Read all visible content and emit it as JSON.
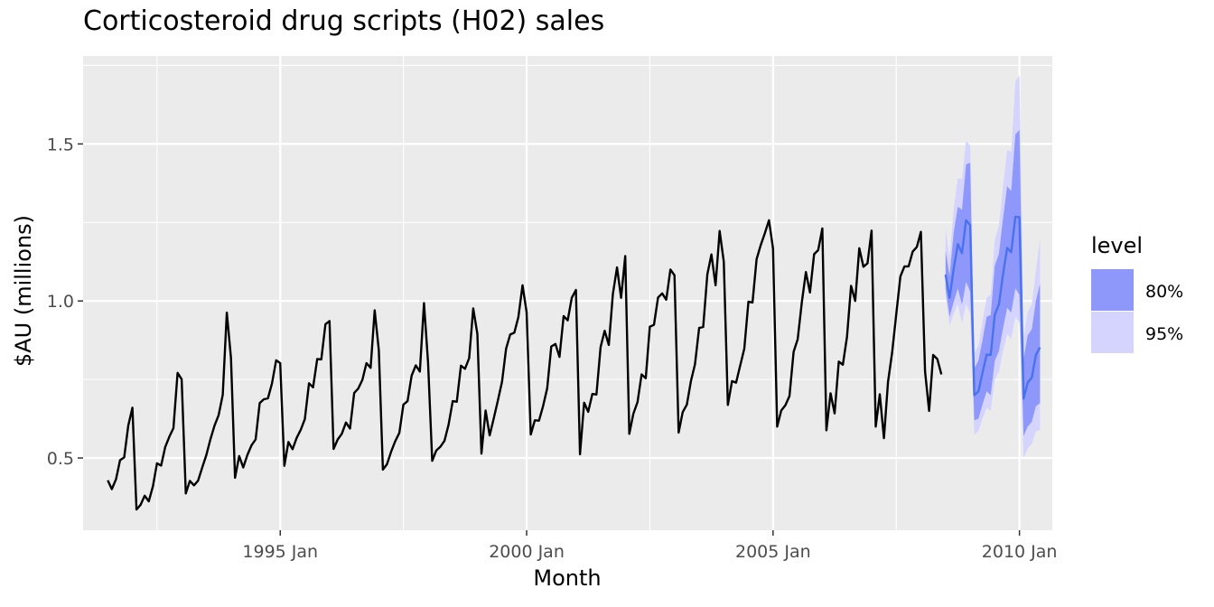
{
  "chart_data": {
    "type": "line",
    "title": "Corticosteroid drug scripts (H02) sales",
    "xlabel": "Month",
    "ylabel": "$AU (millions)",
    "xlim": [
      "1991 Jan",
      "2010 Sep"
    ],
    "ylim": [
      0.27,
      1.78
    ],
    "grid": true,
    "x_ticks": [
      {
        "value": "1995 Jan",
        "label": "1995 Jan"
      },
      {
        "value": "2000 Jan",
        "label": "2000 Jan"
      },
      {
        "value": "2005 Jan",
        "label": "2005 Jan"
      },
      {
        "value": "2010 Jan",
        "label": "2010 Jan"
      }
    ],
    "y_ticks": [
      {
        "value": 0.5,
        "label": "0.5"
      },
      {
        "value": 1.0,
        "label": "1.0"
      },
      {
        "value": 1.5,
        "label": "1.5"
      }
    ],
    "legend": {
      "title": "level",
      "position": "right",
      "entries": [
        {
          "label": "80%",
          "color": "#8e98fb"
        },
        {
          "label": "95%",
          "color": "#d4d4fe"
        }
      ]
    },
    "colors": {
      "history": "#000000",
      "forecast": "#4a72ee",
      "band80": "#8e98fb",
      "band95": "#d4d4fe",
      "panel": "#ebebeb",
      "grid": "#ffffff"
    },
    "series": [
      {
        "role": "history",
        "start": "1991 Jul",
        "values": [
          0.429,
          0.401,
          0.432,
          0.493,
          0.502,
          0.603,
          0.66,
          0.336,
          0.351,
          0.38,
          0.362,
          0.41,
          0.483,
          0.476,
          0.535,
          0.568,
          0.595,
          0.771,
          0.751,
          0.387,
          0.427,
          0.413,
          0.428,
          0.47,
          0.509,
          0.559,
          0.603,
          0.636,
          0.701,
          0.963,
          0.819,
          0.437,
          0.506,
          0.47,
          0.51,
          0.54,
          0.559,
          0.675,
          0.687,
          0.69,
          0.737,
          0.811,
          0.802,
          0.475,
          0.551,
          0.528,
          0.564,
          0.59,
          0.624,
          0.738,
          0.725,
          0.815,
          0.814,
          0.926,
          0.936,
          0.529,
          0.559,
          0.577,
          0.613,
          0.594,
          0.707,
          0.721,
          0.749,
          0.802,
          0.787,
          0.97,
          0.843,
          0.463,
          0.48,
          0.52,
          0.553,
          0.58,
          0.67,
          0.681,
          0.762,
          0.795,
          0.775,
          0.993,
          0.804,
          0.491,
          0.524,
          0.536,
          0.555,
          0.606,
          0.681,
          0.679,
          0.794,
          0.784,
          0.818,
          0.976,
          0.895,
          0.514,
          0.651,
          0.572,
          0.627,
          0.683,
          0.743,
          0.848,
          0.893,
          0.899,
          0.949,
          1.05,
          0.964,
          0.575,
          0.62,
          0.619,
          0.665,
          0.722,
          0.855,
          0.863,
          0.822,
          0.952,
          0.938,
          1.01,
          1.035,
          0.512,
          0.676,
          0.647,
          0.704,
          0.702,
          0.853,
          0.905,
          0.86,
          1.022,
          1.107,
          1.01,
          1.143,
          0.577,
          0.641,
          0.678,
          0.766,
          0.754,
          0.918,
          0.924,
          1.011,
          1.024,
          1.004,
          1.1,
          1.082,
          0.581,
          0.646,
          0.67,
          0.745,
          0.798,
          0.914,
          0.917,
          1.085,
          1.148,
          1.05,
          1.223,
          1.125,
          0.669,
          0.745,
          0.74,
          0.795,
          0.848,
          0.998,
          0.995,
          1.133,
          1.178,
          1.215,
          1.257,
          1.167,
          0.6,
          0.651,
          0.668,
          0.697,
          0.838,
          0.878,
          0.996,
          1.092,
          1.027,
          1.149,
          1.162,
          1.231,
          0.588,
          0.706,
          0.642,
          0.807,
          0.797,
          0.886,
          1.048,
          1.0,
          1.168,
          1.109,
          1.12,
          1.224,
          0.6,
          0.703,
          0.563,
          0.742,
          0.837,
          0.957,
          1.078,
          1.11,
          1.11,
          1.157,
          1.172,
          1.22,
          0.776,
          0.65,
          0.828,
          0.815,
          0.766
        ]
      },
      {
        "role": "forecast",
        "start": "2008 Jul",
        "mean": [
          1.084,
          1.01,
          1.104,
          1.181,
          1.152,
          1.257,
          1.242,
          0.7,
          0.712,
          0.771,
          0.829,
          0.828,
          0.956,
          0.989,
          1.084,
          1.169,
          1.155,
          1.268,
          1.267,
          0.689,
          0.74,
          0.756,
          0.828,
          0.852
        ],
        "lo80": [
          1.04,
          0.95,
          0.998,
          1.04,
          0.988,
          1.06,
          1.03,
          0.62,
          0.625,
          0.67,
          0.712,
          0.7,
          0.81,
          0.84,
          0.913,
          0.978,
          0.963,
          1.04,
          1.02,
          0.57,
          0.6,
          0.615,
          0.665,
          0.675
        ],
        "hi80": [
          1.16,
          1.08,
          1.22,
          1.3,
          1.29,
          1.435,
          1.44,
          0.785,
          0.81,
          0.875,
          0.95,
          0.955,
          1.112,
          1.15,
          1.262,
          1.365,
          1.35,
          1.53,
          1.545,
          0.815,
          0.89,
          0.91,
          1.0,
          1.055
        ],
        "lo95": [
          1.02,
          0.92,
          0.96,
          0.99,
          0.93,
          0.99,
          0.96,
          0.575,
          0.585,
          0.625,
          0.66,
          0.65,
          0.75,
          0.775,
          0.84,
          0.895,
          0.88,
          0.95,
          0.93,
          0.5,
          0.53,
          0.545,
          0.585,
          0.59
        ],
        "hi95": [
          1.23,
          1.135,
          1.295,
          1.39,
          1.39,
          1.51,
          1.495,
          0.83,
          0.86,
          0.935,
          1.01,
          1.02,
          1.195,
          1.24,
          1.365,
          1.48,
          1.475,
          1.7,
          1.718,
          0.88,
          0.965,
          0.99,
          1.095,
          1.2
        ]
      }
    ]
  }
}
